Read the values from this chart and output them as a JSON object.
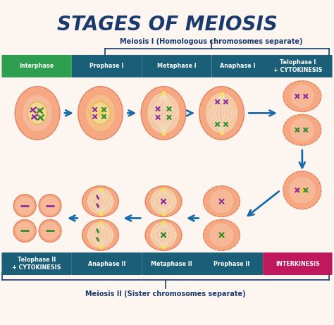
{
  "title": "STAGES OF MEIOSIS",
  "title_color": "#1a3a6e",
  "title_fontsize": 20,
  "bg_color": "#fdf6f0",
  "meiosis1_label": "Meiosis I (Homologous chromosomes separate)",
  "meiosis2_label": "Meiosis II (Sister chromosomes separate)",
  "top_phases": [
    "Interphase",
    "Prophase I",
    "Metaphase I",
    "Anaphase I",
    "Telophase I\n+ CYTOKINESIS"
  ],
  "bottom_phases": [
    "Telophase II\n+ CYTOKINESIS",
    "Anaphase II",
    "Metaphase II",
    "Prophase II",
    "INTERKINESIS"
  ],
  "interphase_color": "#2e9e4f",
  "teal_color": "#1a5e78",
  "pink_color": "#c0185d",
  "cell_fill": "#f5a882",
  "cell_border": "#e08060",
  "cell_inner": "#f8c9a8",
  "nucleus_fill": "#f5d890",
  "nucleus_border": "#d4b040",
  "arrow_color": "#1a6aaa",
  "spindle_color": "#f0e8c8",
  "chr_purple": "#8b2fa0",
  "chr_green": "#2e8b30",
  "label_fontsize": 7.0,
  "phase_fontsize": 5.8
}
